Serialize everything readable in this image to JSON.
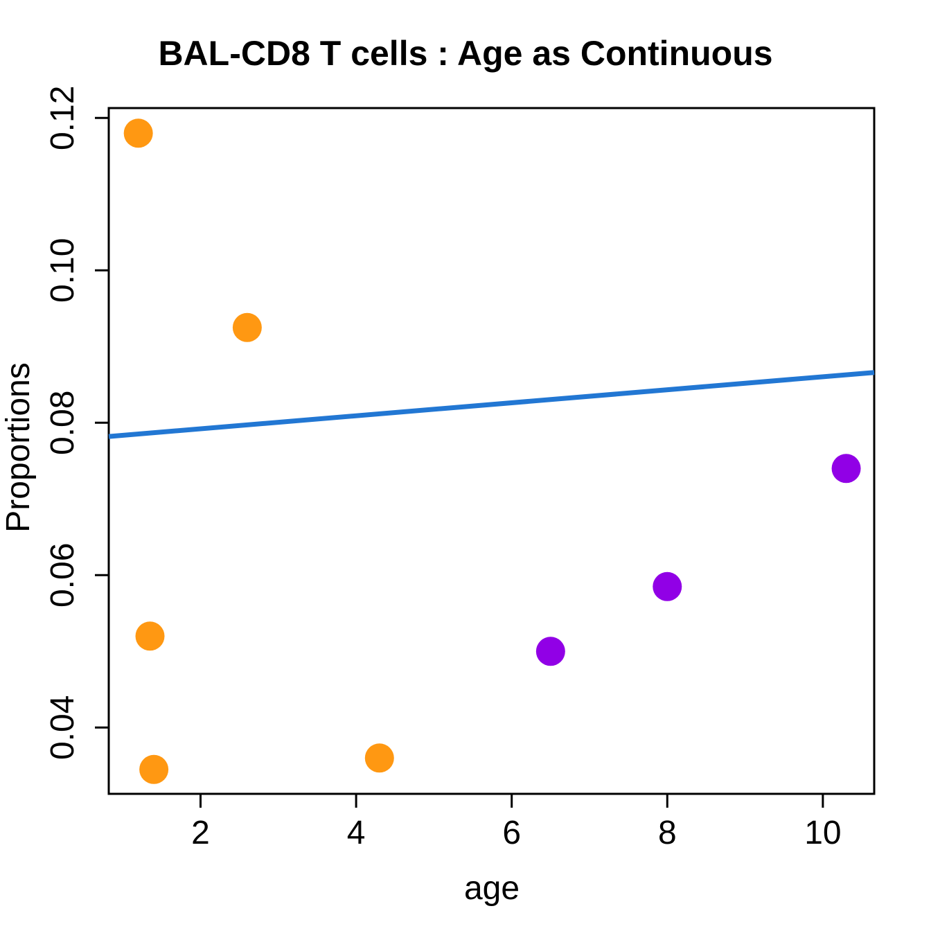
{
  "title": "BAL-CD8 T cells : Age as Continuous",
  "chart_data": {
    "type": "scatter",
    "title": "BAL-CD8 T cells : Age as Continuous",
    "xlabel": "age",
    "ylabel": "Proportions",
    "xlim": [
      0.82,
      10.66
    ],
    "ylim": [
      0.0313,
      0.1213
    ],
    "x_ticks": [
      2,
      4,
      6,
      8,
      10
    ],
    "x_tick_labels": [
      "2",
      "4",
      "6",
      "8",
      "10"
    ],
    "y_ticks": [
      0.04,
      0.06,
      0.08,
      0.1,
      0.12
    ],
    "y_tick_labels": [
      "0.04",
      "0.06",
      "0.08",
      "0.10",
      "0.12"
    ],
    "grid": false,
    "legend": "none",
    "series": [
      {
        "name": "orange-group",
        "color": "#FF9812",
        "points": [
          {
            "x": 1.2,
            "y": 0.118
          },
          {
            "x": 2.6,
            "y": 0.0925
          },
          {
            "x": 1.35,
            "y": 0.052
          },
          {
            "x": 1.4,
            "y": 0.0345
          },
          {
            "x": 4.3,
            "y": 0.036
          }
        ]
      },
      {
        "name": "purple-group",
        "color": "#9100E6",
        "points": [
          {
            "x": 6.5,
            "y": 0.05
          },
          {
            "x": 8.0,
            "y": 0.0585
          },
          {
            "x": 10.3,
            "y": 0.074
          }
        ]
      }
    ],
    "fit_line": {
      "name": "regression-line",
      "color": "#2277D3",
      "x": [
        0.82,
        10.66
      ],
      "y": [
        0.0782,
        0.0866
      ]
    }
  },
  "colors": {
    "background": "#ffffff",
    "axis": "#000000",
    "text": "#000000",
    "orange_points": "#FF9812",
    "purple_points": "#9100E6",
    "fit_line": "#2277D3"
  }
}
